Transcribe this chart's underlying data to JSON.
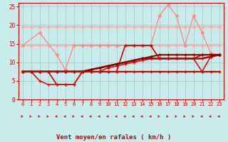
{
  "background_color": "#c8ecec",
  "grid_color": "#a0c8c8",
  "xlabel": "Vent moyen/en rafales ( km/h )",
  "xlim": [
    -0.5,
    23.5
  ],
  "ylim": [
    0,
    26
  ],
  "yticks": [
    0,
    5,
    10,
    15,
    20,
    25
  ],
  "xticks": [
    0,
    1,
    2,
    3,
    4,
    5,
    6,
    7,
    8,
    9,
    10,
    11,
    12,
    13,
    14,
    15,
    16,
    17,
    18,
    19,
    20,
    21,
    22,
    23
  ],
  "series": [
    {
      "x": [
        0,
        1,
        2,
        3,
        4,
        5,
        6,
        7,
        8,
        9,
        10,
        11,
        12,
        13,
        14,
        15,
        16,
        17,
        18,
        19,
        20,
        21,
        22,
        23
      ],
      "y": [
        7.5,
        7.5,
        7.5,
        7.5,
        7.5,
        7.5,
        7.5,
        7.5,
        7.5,
        7.5,
        7.5,
        7.5,
        7.5,
        7.5,
        7.5,
        7.5,
        7.5,
        7.5,
        7.5,
        7.5,
        7.5,
        7.5,
        7.5,
        7.5
      ],
      "color": "#cc0000",
      "lw": 1.5,
      "marker": "+",
      "ms": 3,
      "zorder": 5
    },
    {
      "x": [
        0,
        1,
        2,
        3,
        4,
        5,
        6,
        7,
        8,
        9,
        10,
        11,
        12,
        13,
        14,
        15,
        16,
        17,
        18,
        19,
        20,
        21,
        22,
        23
      ],
      "y": [
        7.5,
        7.5,
        7.5,
        7.5,
        4.0,
        4.0,
        4.0,
        7.5,
        7.5,
        7.5,
        7.5,
        7.5,
        14.5,
        14.5,
        14.5,
        14.5,
        11.0,
        11.0,
        11.0,
        11.0,
        11.0,
        12.0,
        12.0,
        12.0
      ],
      "color": "#cc0000",
      "lw": 1.2,
      "marker": "+",
      "ms": 3,
      "zorder": 4
    },
    {
      "x": [
        0,
        1,
        2,
        3,
        4,
        5,
        6,
        7,
        8,
        9,
        10,
        11,
        12,
        13,
        14,
        15,
        16,
        17,
        18,
        19,
        20,
        21,
        22,
        23
      ],
      "y": [
        7.5,
        7.5,
        5.0,
        4.0,
        4.0,
        4.0,
        4.0,
        7.5,
        7.5,
        7.5,
        8.5,
        9.0,
        9.5,
        10.0,
        10.5,
        11.0,
        11.0,
        11.0,
        11.0,
        11.0,
        11.0,
        7.5,
        11.5,
        12.0
      ],
      "color": "#dd1111",
      "lw": 1.2,
      "marker": "+",
      "ms": 3,
      "zorder": 4
    },
    {
      "x": [
        0,
        1,
        2,
        3,
        4,
        5,
        6,
        7,
        8,
        9,
        10,
        11,
        12,
        13,
        14,
        15,
        16,
        17,
        18,
        19,
        20,
        21,
        22,
        23
      ],
      "y": [
        7.5,
        7.5,
        7.5,
        7.5,
        7.5,
        7.5,
        7.5,
        7.5,
        8.0,
        8.5,
        9.0,
        9.5,
        10.0,
        10.5,
        11.0,
        11.0,
        11.0,
        11.0,
        11.0,
        11.0,
        11.0,
        11.0,
        11.5,
        12.0
      ],
      "color": "#bb0000",
      "lw": 1.8,
      "marker": "+",
      "ms": 3,
      "zorder": 4
    },
    {
      "x": [
        0,
        1,
        2,
        3,
        4,
        5,
        6,
        7,
        8,
        9,
        10,
        11,
        12,
        13,
        14,
        15,
        16,
        17,
        18,
        19,
        20,
        21,
        22,
        23
      ],
      "y": [
        7.5,
        7.5,
        7.5,
        7.5,
        7.5,
        7.5,
        7.5,
        7.5,
        8.0,
        8.5,
        9.0,
        9.5,
        10.0,
        10.5,
        11.0,
        11.5,
        12.0,
        12.0,
        12.0,
        12.0,
        12.0,
        12.0,
        12.0,
        12.0
      ],
      "color": "#880000",
      "lw": 1.5,
      "marker": "+",
      "ms": 3,
      "zorder": 4
    },
    {
      "x": [
        0,
        1,
        2,
        3,
        4,
        5,
        6,
        7,
        8,
        9,
        10,
        11,
        12,
        13,
        14,
        15,
        16,
        17,
        18,
        19,
        20,
        21,
        22,
        23
      ],
      "y": [
        14.5,
        14.5,
        14.5,
        14.5,
        14.5,
        14.5,
        14.5,
        14.5,
        14.5,
        14.5,
        14.5,
        14.5,
        14.5,
        14.5,
        14.5,
        14.5,
        14.5,
        14.5,
        14.5,
        14.5,
        14.5,
        14.5,
        14.5,
        14.5
      ],
      "color": "#ffaaaa",
      "lw": 1.2,
      "marker": "D",
      "ms": 2,
      "zorder": 3
    },
    {
      "x": [
        0,
        1,
        2,
        3,
        4,
        5,
        6,
        7,
        8,
        9,
        10,
        11,
        12,
        13,
        14,
        15,
        16,
        17,
        18,
        19,
        20,
        21,
        22,
        23
      ],
      "y": [
        19.5,
        19.5,
        19.5,
        19.5,
        19.5,
        19.5,
        19.5,
        19.5,
        19.5,
        19.5,
        19.5,
        19.5,
        19.5,
        19.5,
        19.5,
        19.5,
        19.5,
        19.5,
        19.5,
        19.5,
        19.5,
        19.5,
        19.5,
        19.5
      ],
      "color": "#ffaaaa",
      "lw": 1.2,
      "marker": "D",
      "ms": 2,
      "zorder": 3
    },
    {
      "x": [
        0,
        2,
        4,
        5,
        6,
        7,
        8,
        9,
        10,
        11,
        12,
        13,
        14,
        15,
        16,
        17,
        18,
        19,
        20,
        21,
        22,
        23
      ],
      "y": [
        14.5,
        18.0,
        12.0,
        8.0,
        14.5,
        14.5,
        14.5,
        14.5,
        14.5,
        14.5,
        14.5,
        14.5,
        14.5,
        14.5,
        22.5,
        25.5,
        22.5,
        14.5,
        22.5,
        18.0,
        12.5,
        12.0
      ],
      "color": "#ff8888",
      "lw": 1.0,
      "marker": "D",
      "ms": 2,
      "zorder": 3
    }
  ],
  "arrow_angles": [
    225,
    225,
    225,
    225,
    270,
    270,
    225,
    270,
    270,
    270,
    270,
    270,
    270,
    270,
    270,
    270,
    225,
    225,
    225,
    225,
    225,
    270,
    270,
    270
  ]
}
